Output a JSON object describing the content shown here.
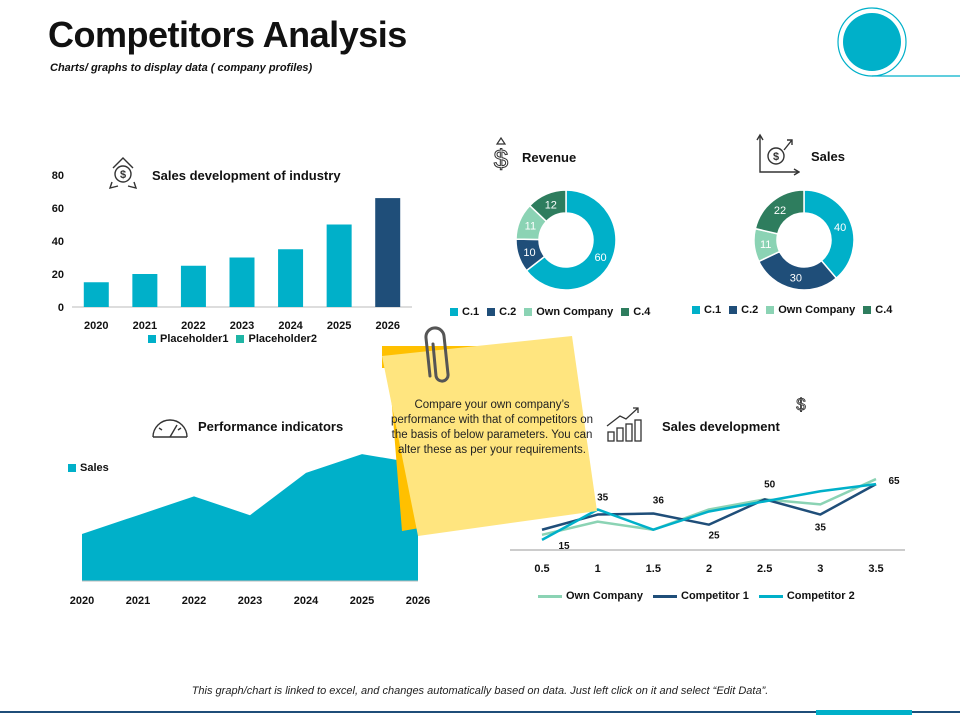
{
  "header": {
    "title": "Competitors Analysis",
    "subtitle": "Charts/ graphs to display data ( company profiles)"
  },
  "footer": {
    "note": "This graph/chart is linked to excel, and changes automatically based on data. Just left click on it and select “Edit Data”."
  },
  "sticky_note": {
    "text": "Compare your own company’s performance with that of competitors on the basis of below parameters. You can alter these as per your requirements."
  },
  "colors": {
    "teal": "#00B0C9",
    "navy": "#1F4E79",
    "mint": "#8BD3B4",
    "green": "#2E7D5E",
    "sticky": "#FFE57F",
    "sticky_tab": "#FFC000"
  },
  "icons": {
    "industry": "dollar-recycle-icon",
    "revenue": "dollar-icon",
    "sales": "dollar-growth-chart-icon",
    "performance": "gauge-icon",
    "sales_development": "bar-growth-icon",
    "paperclip": "paperclip-icon"
  },
  "chart_data": [
    {
      "id": "industry",
      "type": "bar",
      "title": "Sales development of industry",
      "categories": [
        "2020",
        "2021",
        "2022",
        "2023",
        "2024",
        "2025",
        "2026"
      ],
      "series": [
        {
          "name": "Placeholder1",
          "values": [
            15,
            20,
            25,
            30,
            35,
            50,
            0
          ]
        },
        {
          "name": "Placeholder2",
          "values": [
            0,
            0,
            0,
            0,
            0,
            0,
            66
          ]
        }
      ],
      "yticks": [
        "0",
        "20",
        "40",
        "60",
        "80"
      ],
      "ylim": [
        0,
        80
      ],
      "legend": "bottom"
    },
    {
      "id": "revenue",
      "type": "pie",
      "title": "Revenue",
      "labels": [
        "C.1",
        "C.2",
        "Own Company",
        "C.4"
      ],
      "values": [
        60,
        10,
        11,
        12
      ],
      "value_labels": [
        "60",
        "10",
        "11",
        "12"
      ],
      "legend": "bottom"
    },
    {
      "id": "sales",
      "type": "pie",
      "title": "Sales",
      "labels": [
        "C.1",
        "C.2",
        "Own Company",
        "C.4"
      ],
      "values": [
        40,
        30,
        11,
        22
      ],
      "value_labels": [
        "40",
        "30",
        "11",
        "22"
      ],
      "legend": "bottom"
    },
    {
      "id": "performance",
      "type": "area",
      "title": "Performance indicators",
      "categories": [
        "2020",
        "2021",
        "2022",
        "2023",
        "2024",
        "2025",
        "2026"
      ],
      "series": [
        {
          "name": "Sales",
          "values": [
            50,
            70,
            90,
            70,
            115,
            135,
            125
          ]
        }
      ],
      "ylim": [
        0,
        150
      ],
      "legend": "top-left"
    },
    {
      "id": "sales_development",
      "type": "line",
      "title": "Sales development",
      "x": [
        0.5,
        1,
        1.5,
        2,
        2.5,
        3,
        3.5
      ],
      "xticks": [
        "0.5",
        "1",
        "1.5",
        "2",
        "2.5",
        "3",
        "3.5"
      ],
      "series": [
        {
          "name": "Own Company",
          "values": [
            15,
            28,
            20,
            40,
            50,
            45,
            70
          ]
        },
        {
          "name": "Competitor 1",
          "values": [
            20,
            35,
            36,
            25,
            50,
            35,
            65
          ]
        },
        {
          "name": "Competitor 2",
          "values": [
            10,
            40,
            20,
            38,
            48,
            58,
            65
          ]
        }
      ],
      "data_labels": [
        {
          "x": 0.5,
          "y": 15,
          "text": "15"
        },
        {
          "x": 1,
          "y": 35,
          "text": "35"
        },
        {
          "x": 1.5,
          "y": 36,
          "text": "36"
        },
        {
          "x": 2,
          "y": 25,
          "text": "25"
        },
        {
          "x": 2.5,
          "y": 50,
          "text": "50"
        },
        {
          "x": 3,
          "y": 35,
          "text": "35"
        },
        {
          "x": 3.5,
          "y": 65,
          "text": "65"
        }
      ],
      "ylim": [
        0,
        75
      ],
      "legend": "bottom"
    }
  ]
}
